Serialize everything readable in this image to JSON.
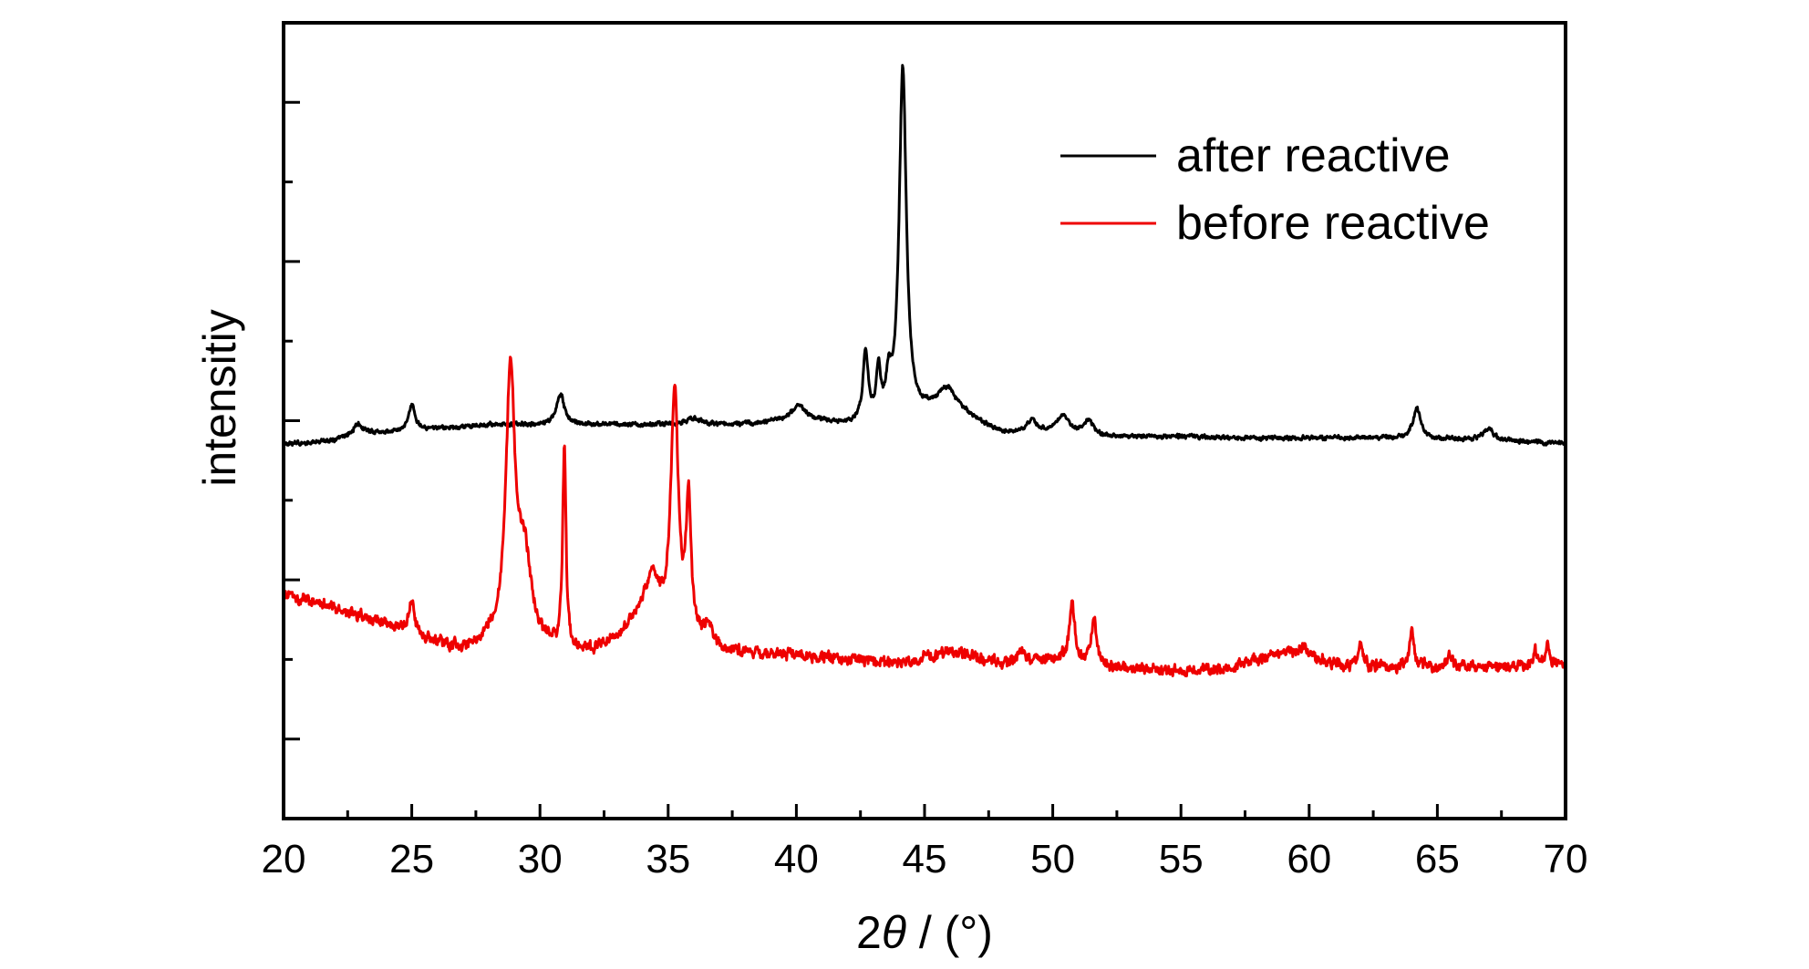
{
  "chart_data": {
    "type": "line",
    "title": "",
    "xlabel": "2θ / (°)",
    "xlabel_parts": {
      "prefix": "2",
      "symbol": "θ",
      "suffix": " / (°)"
    },
    "ylabel": "intensitiy",
    "xlim": [
      20,
      70
    ],
    "ylim": [
      0,
      10
    ],
    "x_ticks": [
      "20",
      "25",
      "30",
      "35",
      "40",
      "45",
      "50",
      "55",
      "60",
      "65",
      "70"
    ],
    "y_tick_labels": false,
    "grid": false,
    "legend_position": "top-right",
    "series": [
      {
        "name": "after reactive",
        "color": "#000000",
        "baseline": [
          [
            20,
            4.7
          ],
          [
            22,
            4.75
          ],
          [
            23,
            4.85
          ],
          [
            24,
            4.85
          ],
          [
            26,
            4.9
          ],
          [
            28,
            4.95
          ],
          [
            30,
            4.95
          ],
          [
            32,
            4.95
          ],
          [
            34,
            4.95
          ],
          [
            36,
            4.95
          ],
          [
            38,
            4.95
          ],
          [
            40,
            5.0
          ],
          [
            42,
            4.95
          ],
          [
            44,
            4.95
          ],
          [
            46,
            5.2
          ],
          [
            47,
            5.0
          ],
          [
            48,
            4.85
          ],
          [
            50,
            4.85
          ],
          [
            52,
            4.8
          ],
          [
            55,
            4.8
          ],
          [
            58,
            4.78
          ],
          [
            61,
            4.78
          ],
          [
            64,
            4.78
          ],
          [
            67,
            4.75
          ],
          [
            70,
            4.72
          ]
        ],
        "peaks": [
          {
            "x": 22.9,
            "h": 0.12,
            "w": 0.2
          },
          {
            "x": 25.0,
            "h": 0.32,
            "w": 0.15
          },
          {
            "x": 30.8,
            "h": 0.38,
            "w": 0.18
          },
          {
            "x": 36.0,
            "h": 0.08,
            "w": 0.3
          },
          {
            "x": 40.1,
            "h": 0.18,
            "w": 0.35
          },
          {
            "x": 42.7,
            "h": 0.88,
            "w": 0.12
          },
          {
            "x": 43.2,
            "h": 0.6,
            "w": 0.1
          },
          {
            "x": 43.6,
            "h": 0.45,
            "w": 0.12
          },
          {
            "x": 44.15,
            "h": 4.45,
            "w": 0.17
          },
          {
            "x": 45.8,
            "h": 0.2,
            "w": 0.4
          },
          {
            "x": 49.2,
            "h": 0.15,
            "w": 0.2
          },
          {
            "x": 50.4,
            "h": 0.22,
            "w": 0.3
          },
          {
            "x": 51.4,
            "h": 0.18,
            "w": 0.2
          },
          {
            "x": 64.2,
            "h": 0.38,
            "w": 0.18
          },
          {
            "x": 67.0,
            "h": 0.14,
            "w": 0.25
          }
        ],
        "noise": 0.035
      },
      {
        "name": "before reactive",
        "color": "#ee0000",
        "baseline": [
          [
            20,
            2.8
          ],
          [
            21,
            2.75
          ],
          [
            22,
            2.65
          ],
          [
            23,
            2.55
          ],
          [
            24,
            2.45
          ],
          [
            26,
            2.2
          ],
          [
            27,
            2.1
          ],
          [
            28,
            2.2
          ],
          [
            30,
            2.15
          ],
          [
            31,
            2.05
          ],
          [
            32,
            2.1
          ],
          [
            33,
            2.25
          ],
          [
            34,
            2.6
          ],
          [
            36,
            2.2
          ],
          [
            37,
            2.1
          ],
          [
            40,
            2.05
          ],
          [
            42,
            2.0
          ],
          [
            44,
            1.95
          ],
          [
            46,
            2.1
          ],
          [
            48,
            1.95
          ],
          [
            50,
            2.0
          ],
          [
            52,
            1.9
          ],
          [
            55,
            1.85
          ],
          [
            57,
            1.9
          ],
          [
            59,
            2.1
          ],
          [
            60,
            2.0
          ],
          [
            62,
            1.9
          ],
          [
            65,
            1.9
          ],
          [
            68,
            1.9
          ],
          [
            70,
            1.95
          ]
        ],
        "peaks": [
          {
            "x": 25.0,
            "h": 0.42,
            "w": 0.12
          },
          {
            "x": 28.85,
            "h": 3.35,
            "w": 0.22
          },
          {
            "x": 29.4,
            "h": 1.0,
            "w": 0.3
          },
          {
            "x": 30.95,
            "h": 2.55,
            "w": 0.08
          },
          {
            "x": 34.4,
            "h": 0.5,
            "w": 0.25
          },
          {
            "x": 35.25,
            "h": 3.0,
            "w": 0.17
          },
          {
            "x": 35.8,
            "h": 1.65,
            "w": 0.12
          },
          {
            "x": 36.6,
            "h": 0.25,
            "w": 0.2
          },
          {
            "x": 48.8,
            "h": 0.18,
            "w": 0.15
          },
          {
            "x": 50.75,
            "h": 0.75,
            "w": 0.12
          },
          {
            "x": 51.6,
            "h": 0.55,
            "w": 0.14
          },
          {
            "x": 59.8,
            "h": 0.15,
            "w": 0.2
          },
          {
            "x": 62.0,
            "h": 0.28,
            "w": 0.12
          },
          {
            "x": 64.0,
            "h": 0.48,
            "w": 0.1
          },
          {
            "x": 65.5,
            "h": 0.15,
            "w": 0.15
          },
          {
            "x": 68.8,
            "h": 0.2,
            "w": 0.08
          },
          {
            "x": 69.3,
            "h": 0.25,
            "w": 0.08
          }
        ],
        "noise": 0.09
      }
    ]
  }
}
